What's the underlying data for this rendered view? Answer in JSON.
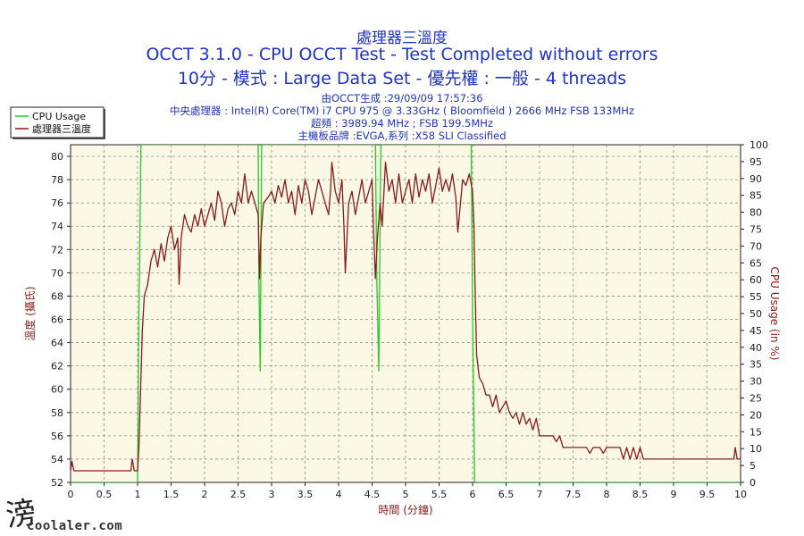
{
  "chart_data": {
    "type": "line",
    "title": "處理器三溫度",
    "subtitle_1": "OCCT 3.1.0 - CPU OCCT Test - Test Completed without errors",
    "subtitle_2": "10分 - 模式 : Large Data Set - 優先權 : 一般 - 4 threads",
    "info": [
      "由OCCT生成 :29/09/09 17:57:36",
      "中央處理器 : Intel(R) Core(TM) i7 CPU 975 @ 3.33GHz ( Bloomfield ) 2666 MHz FSB 133MHz",
      "超頻 : 3989.94 MHz ; FSB 199.5MHz",
      "主機板品牌 :EVGA,系列 :X58 SLI Classified"
    ],
    "xlabel": "時間 (分鐘)",
    "ylabel_left": "溫度 (攝氏)",
    "ylabel_right": "CPU Usage (in %)",
    "xlim": [
      0,
      10
    ],
    "ylim_left": [
      52,
      81
    ],
    "ylim_right": [
      0,
      100
    ],
    "x_ticks": [
      "0",
      "0.5",
      "1",
      "1.5",
      "2",
      "2.5",
      "3",
      "3.5",
      "4",
      "4.5",
      "5",
      "5.5",
      "6",
      "6.5",
      "7",
      "7.5",
      "8",
      "8.5",
      "9",
      "9.5",
      "10"
    ],
    "y_left_ticks": [
      "52",
      "54",
      "56",
      "58",
      "60",
      "62",
      "64",
      "66",
      "68",
      "70",
      "72",
      "74",
      "76",
      "78",
      "80"
    ],
    "y_right_ticks": [
      "0",
      "5",
      "10",
      "15",
      "20",
      "25",
      "30",
      "35",
      "40",
      "45",
      "50",
      "55",
      "60",
      "65",
      "70",
      "75",
      "80",
      "85",
      "90",
      "95",
      "100"
    ],
    "grid": true,
    "legend_position": "top-left",
    "series": [
      {
        "name": "CPU Usage",
        "axis": "right",
        "color": "#22cc22",
        "points": [
          [
            0,
            0
          ],
          [
            1.0,
            0
          ],
          [
            1.02,
            50
          ],
          [
            1.05,
            100
          ],
          [
            2.8,
            100
          ],
          [
            2.81,
            60
          ],
          [
            2.83,
            33
          ],
          [
            2.85,
            100
          ],
          [
            4.55,
            100
          ],
          [
            4.57,
            60
          ],
          [
            4.6,
            33
          ],
          [
            4.63,
            100
          ],
          [
            5.98,
            100
          ],
          [
            6.0,
            50
          ],
          [
            6.03,
            0
          ],
          [
            10,
            0
          ]
        ]
      },
      {
        "name": "處理器三溫度",
        "axis": "left",
        "color": "#8b1a1a",
        "points": [
          [
            0,
            53
          ],
          [
            0.02,
            53.8
          ],
          [
            0.05,
            53
          ],
          [
            0.5,
            53
          ],
          [
            0.8,
            53
          ],
          [
            0.9,
            53
          ],
          [
            0.92,
            54
          ],
          [
            0.95,
            53
          ],
          [
            1.0,
            53
          ],
          [
            1.02,
            55
          ],
          [
            1.05,
            61
          ],
          [
            1.07,
            65
          ],
          [
            1.1,
            68
          ],
          [
            1.15,
            69
          ],
          [
            1.2,
            71
          ],
          [
            1.25,
            72
          ],
          [
            1.3,
            70.5
          ],
          [
            1.35,
            72.5
          ],
          [
            1.4,
            71
          ],
          [
            1.45,
            73
          ],
          [
            1.5,
            74
          ],
          [
            1.55,
            72
          ],
          [
            1.6,
            73
          ],
          [
            1.62,
            69
          ],
          [
            1.65,
            73
          ],
          [
            1.7,
            75
          ],
          [
            1.75,
            74
          ],
          [
            1.8,
            73.5
          ],
          [
            1.85,
            75
          ],
          [
            1.9,
            74
          ],
          [
            1.95,
            75.5
          ],
          [
            2.0,
            74
          ],
          [
            2.05,
            75
          ],
          [
            2.1,
            76
          ],
          [
            2.15,
            74.5
          ],
          [
            2.2,
            77
          ],
          [
            2.25,
            76
          ],
          [
            2.3,
            74
          ],
          [
            2.35,
            75.5
          ],
          [
            2.4,
            76
          ],
          [
            2.45,
            75
          ],
          [
            2.5,
            77
          ],
          [
            2.55,
            76
          ],
          [
            2.6,
            78.5
          ],
          [
            2.65,
            76
          ],
          [
            2.7,
            77
          ],
          [
            2.75,
            76
          ],
          [
            2.8,
            75
          ],
          [
            2.82,
            69.5
          ],
          [
            2.84,
            73
          ],
          [
            2.88,
            76
          ],
          [
            2.95,
            76.5
          ],
          [
            3.0,
            77
          ],
          [
            3.05,
            76
          ],
          [
            3.1,
            77.5
          ],
          [
            3.15,
            76.5
          ],
          [
            3.2,
            78
          ],
          [
            3.25,
            76
          ],
          [
            3.3,
            77
          ],
          [
            3.35,
            75
          ],
          [
            3.4,
            77.5
          ],
          [
            3.45,
            76
          ],
          [
            3.5,
            78
          ],
          [
            3.55,
            77
          ],
          [
            3.6,
            75
          ],
          [
            3.65,
            76.5
          ],
          [
            3.7,
            78
          ],
          [
            3.75,
            77
          ],
          [
            3.8,
            76
          ],
          [
            3.85,
            75
          ],
          [
            3.88,
            77
          ],
          [
            3.9,
            79.5
          ],
          [
            3.95,
            77
          ],
          [
            4.0,
            76
          ],
          [
            4.05,
            78
          ],
          [
            4.08,
            74
          ],
          [
            4.1,
            70
          ],
          [
            4.15,
            76
          ],
          [
            4.2,
            77
          ],
          [
            4.25,
            75
          ],
          [
            4.3,
            76.5
          ],
          [
            4.35,
            78
          ],
          [
            4.4,
            76
          ],
          [
            4.45,
            77
          ],
          [
            4.5,
            78
          ],
          [
            4.52,
            74
          ],
          [
            4.55,
            69.5
          ],
          [
            4.58,
            73
          ],
          [
            4.62,
            76
          ],
          [
            4.65,
            74
          ],
          [
            4.7,
            79.5
          ],
          [
            4.75,
            77
          ],
          [
            4.8,
            78
          ],
          [
            4.85,
            76
          ],
          [
            4.9,
            78.5
          ],
          [
            4.95,
            76
          ],
          [
            5.0,
            77
          ],
          [
            5.05,
            78
          ],
          [
            5.1,
            76
          ],
          [
            5.15,
            78.5
          ],
          [
            5.2,
            76.5
          ],
          [
            5.25,
            78
          ],
          [
            5.3,
            77
          ],
          [
            5.35,
            78.5
          ],
          [
            5.4,
            76
          ],
          [
            5.45,
            77.5
          ],
          [
            5.5,
            79
          ],
          [
            5.55,
            77
          ],
          [
            5.6,
            78
          ],
          [
            5.65,
            77
          ],
          [
            5.7,
            78.5
          ],
          [
            5.75,
            76.5
          ],
          [
            5.78,
            73.5
          ],
          [
            5.82,
            76
          ],
          [
            5.85,
            78
          ],
          [
            5.9,
            77.5
          ],
          [
            5.95,
            78.5
          ],
          [
            6.0,
            77
          ],
          [
            6.02,
            74
          ],
          [
            6.04,
            68
          ],
          [
            6.06,
            63
          ],
          [
            6.1,
            61
          ],
          [
            6.15,
            60.5
          ],
          [
            6.2,
            59.5
          ],
          [
            6.25,
            59.5
          ],
          [
            6.3,
            58.5
          ],
          [
            6.35,
            59.5
          ],
          [
            6.4,
            58
          ],
          [
            6.45,
            58.5
          ],
          [
            6.5,
            59
          ],
          [
            6.55,
            58
          ],
          [
            6.6,
            57.5
          ],
          [
            6.65,
            58
          ],
          [
            6.7,
            57
          ],
          [
            6.75,
            58
          ],
          [
            6.8,
            57
          ],
          [
            6.85,
            57.5
          ],
          [
            6.9,
            56.5
          ],
          [
            6.95,
            57.5
          ],
          [
            7.0,
            56
          ],
          [
            7.1,
            56
          ],
          [
            7.2,
            56
          ],
          [
            7.25,
            55.5
          ],
          [
            7.3,
            56
          ],
          [
            7.35,
            55
          ],
          [
            7.4,
            55
          ],
          [
            7.5,
            55
          ],
          [
            7.6,
            55
          ],
          [
            7.7,
            55
          ],
          [
            7.75,
            54.5
          ],
          [
            7.8,
            55
          ],
          [
            7.9,
            55
          ],
          [
            7.95,
            54.5
          ],
          [
            8.0,
            55
          ],
          [
            8.1,
            55
          ],
          [
            8.2,
            55
          ],
          [
            8.25,
            54
          ],
          [
            8.3,
            55
          ],
          [
            8.35,
            54
          ],
          [
            8.4,
            55
          ],
          [
            8.45,
            54
          ],
          [
            8.5,
            55
          ],
          [
            8.55,
            54
          ],
          [
            8.6,
            54
          ],
          [
            8.7,
            54
          ],
          [
            8.8,
            54
          ],
          [
            9.0,
            54
          ],
          [
            9.2,
            54
          ],
          [
            9.5,
            54
          ],
          [
            9.8,
            54
          ],
          [
            9.9,
            54
          ],
          [
            9.92,
            55
          ],
          [
            9.95,
            54
          ],
          [
            10,
            54
          ]
        ]
      }
    ]
  },
  "watermark": {
    "glyph": "滂",
    "text": "coolaler.com"
  }
}
